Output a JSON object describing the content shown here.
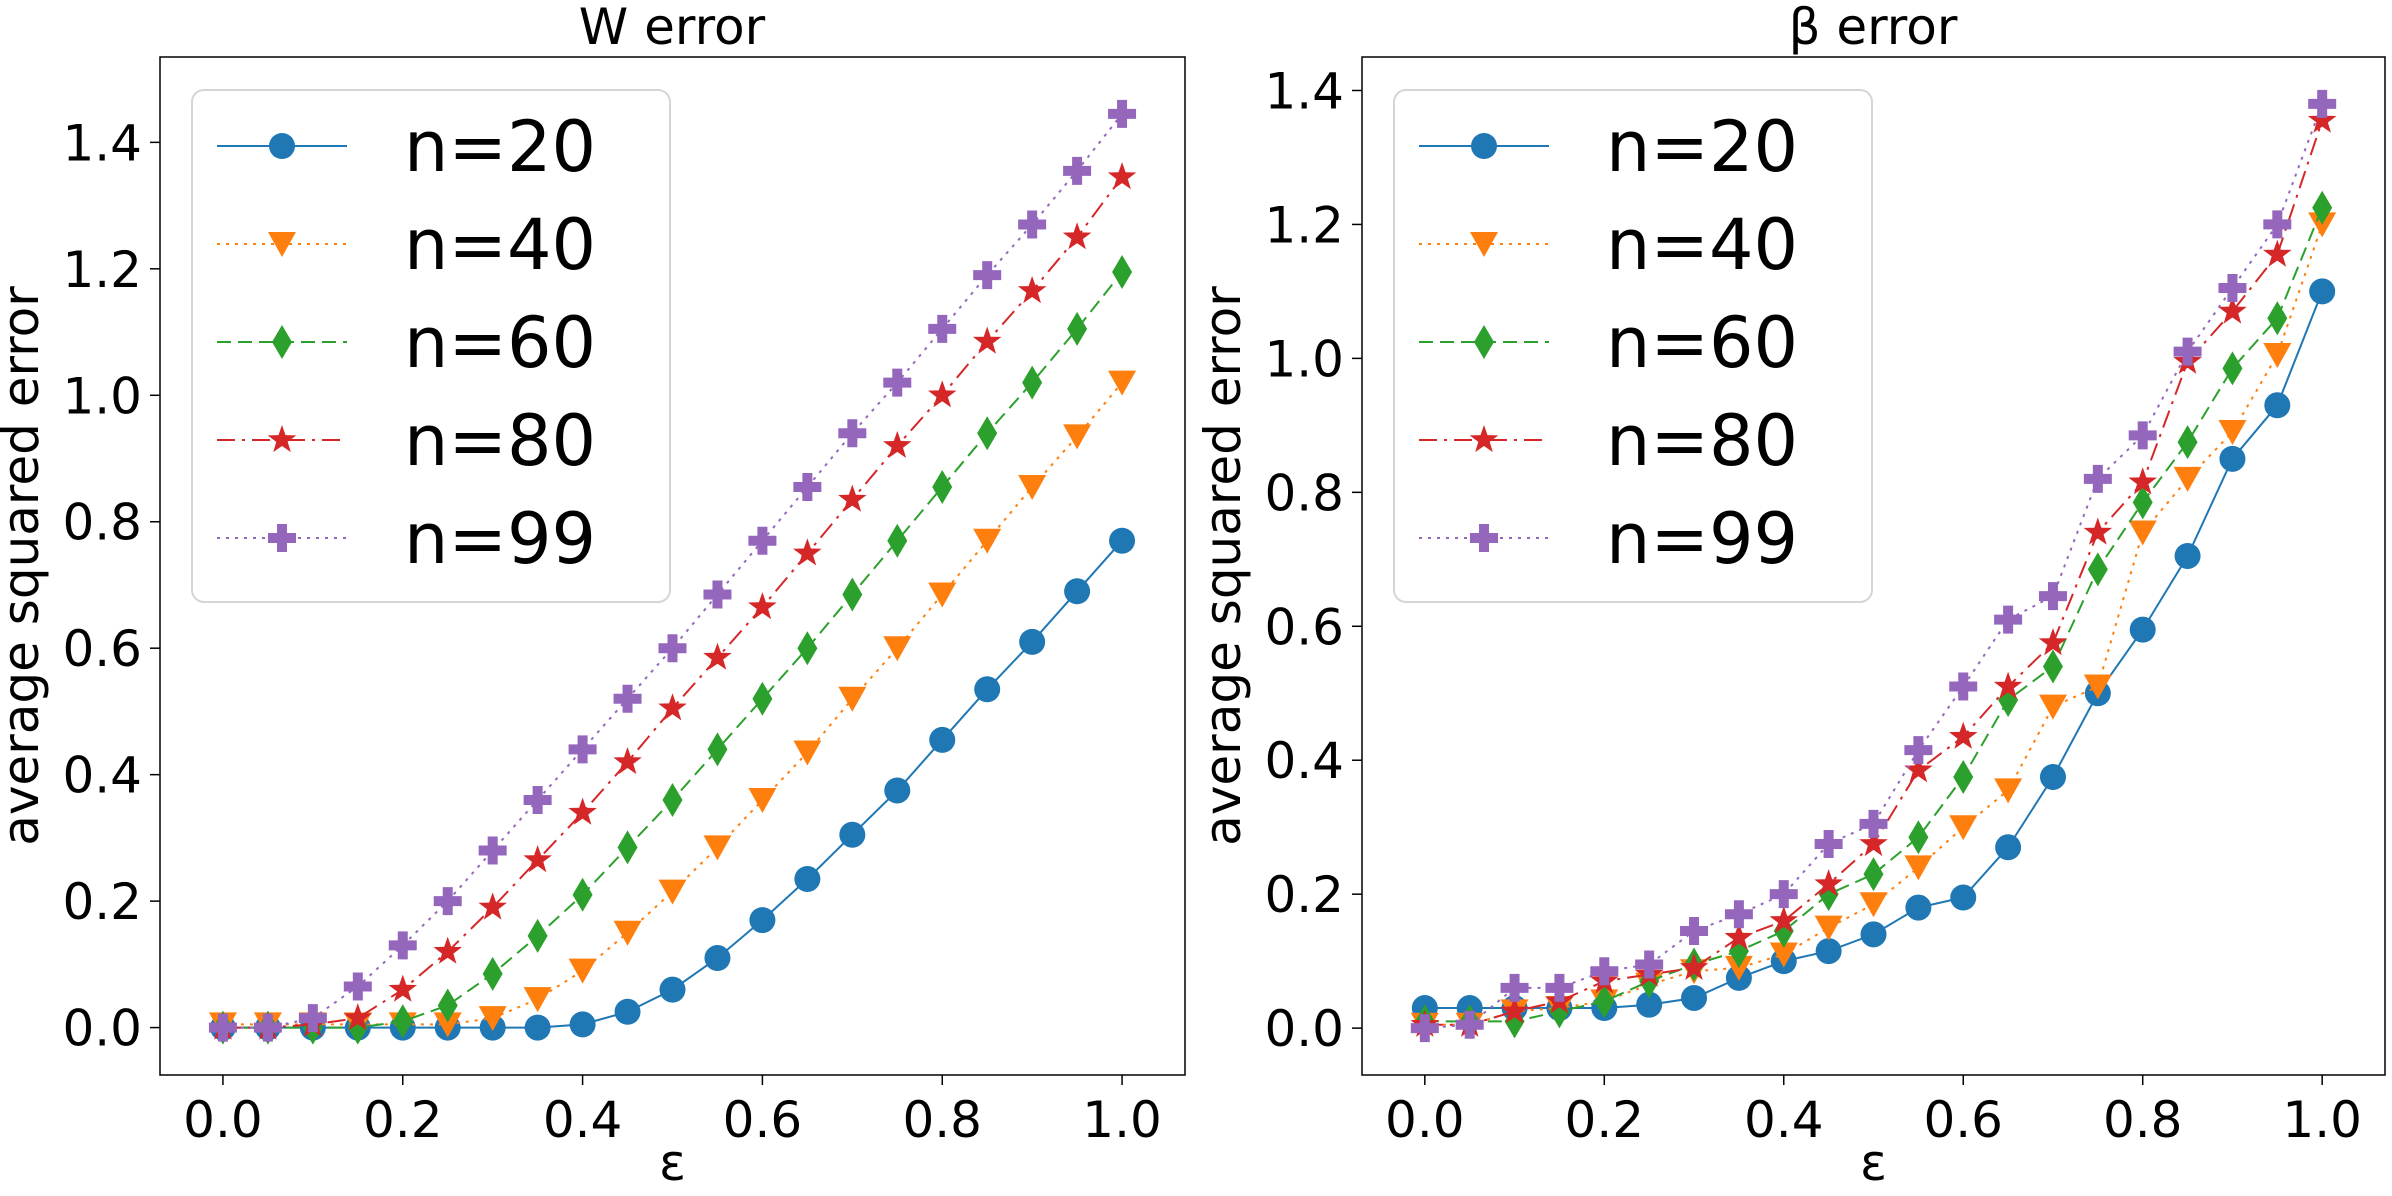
{
  "colors": {
    "n20": "#1f77b4",
    "n40": "#ff7f0e",
    "n60": "#2ca02c",
    "n80": "#d62728",
    "n99": "#9467bd"
  },
  "chart_data": [
    {
      "type": "line",
      "title": "W error",
      "xlabel": "ε",
      "ylabel": "average squared error",
      "xlim": [
        -0.07,
        1.07
      ],
      "ylim": [
        -0.075,
        1.535
      ],
      "xticks": [
        "0.0",
        "0.2",
        "0.4",
        "0.6",
        "0.8",
        "1.0"
      ],
      "yticks": [
        "0.0",
        "0.2",
        "0.4",
        "0.6",
        "0.8",
        "1.0",
        "1.2",
        "1.4"
      ],
      "grid": false,
      "legend": "top-left",
      "x": [
        0.0,
        0.05,
        0.1,
        0.15,
        0.2,
        0.25,
        0.3,
        0.35,
        0.4,
        0.45,
        0.5,
        0.55,
        0.6,
        0.65,
        0.7,
        0.75,
        0.8,
        0.85,
        0.9,
        0.95,
        1.0
      ],
      "series": [
        {
          "name": "n=20",
          "marker": "circle",
          "linestyle": "solid",
          "color": "#1f77b4",
          "values": [
            0.0,
            0.0,
            0.0,
            0.0,
            0.0,
            0.0,
            0.0,
            0.0,
            0.005,
            0.025,
            0.06,
            0.11,
            0.17,
            0.235,
            0.305,
            0.375,
            0.455,
            0.535,
            0.61,
            0.69,
            0.77
          ]
        },
        {
          "name": "n=40",
          "marker": "triangle-down",
          "linestyle": "dotted",
          "color": "#ff7f0e",
          "values": [
            0.005,
            0.005,
            0.005,
            0.005,
            0.005,
            0.005,
            0.015,
            0.045,
            0.09,
            0.15,
            0.215,
            0.285,
            0.36,
            0.435,
            0.52,
            0.6,
            0.685,
            0.77,
            0.855,
            0.935,
            1.02
          ]
        },
        {
          "name": "n=60",
          "marker": "thin-diamond",
          "linestyle": "dashed",
          "color": "#2ca02c",
          "values": [
            0.0,
            0.0,
            0.0,
            0.0,
            0.01,
            0.035,
            0.085,
            0.145,
            0.21,
            0.285,
            0.36,
            0.44,
            0.52,
            0.6,
            0.685,
            0.77,
            0.855,
            0.94,
            1.02,
            1.105,
            1.195
          ]
        },
        {
          "name": "n=80",
          "marker": "star",
          "linestyle": "dashdot",
          "color": "#d62728",
          "values": [
            0.0,
            0.0,
            0.005,
            0.015,
            0.06,
            0.12,
            0.19,
            0.265,
            0.34,
            0.42,
            0.505,
            0.585,
            0.665,
            0.75,
            0.835,
            0.92,
            1.0,
            1.085,
            1.165,
            1.25,
            1.345
          ]
        },
        {
          "name": "n=99",
          "marker": "plus",
          "linestyle": "dotted",
          "color": "#9467bd",
          "values": [
            0.0,
            0.0,
            0.015,
            0.065,
            0.13,
            0.2,
            0.28,
            0.36,
            0.44,
            0.52,
            0.6,
            0.685,
            0.77,
            0.855,
            0.94,
            1.02,
            1.105,
            1.19,
            1.27,
            1.355,
            1.445
          ]
        }
      ]
    },
    {
      "type": "line",
      "title": "β error",
      "xlabel": "ε",
      "ylabel": "average squared error",
      "xlim": [
        -0.07,
        1.07
      ],
      "ylim": [
        -0.07,
        1.45
      ],
      "xticks": [
        "0.0",
        "0.2",
        "0.4",
        "0.6",
        "0.8",
        "1.0"
      ],
      "yticks": [
        "0.0",
        "0.2",
        "0.4",
        "0.6",
        "0.8",
        "1.0",
        "1.2",
        "1.4"
      ],
      "grid": false,
      "legend": "top-left",
      "x": [
        0.0,
        0.05,
        0.1,
        0.15,
        0.2,
        0.25,
        0.3,
        0.35,
        0.4,
        0.45,
        0.5,
        0.55,
        0.6,
        0.65,
        0.7,
        0.75,
        0.8,
        0.85,
        0.9,
        0.95,
        1.0
      ],
      "series": [
        {
          "name": "n=20",
          "marker": "circle",
          "linestyle": "solid",
          "color": "#1f77b4",
          "values": [
            0.03,
            0.03,
            0.03,
            0.03,
            0.03,
            0.035,
            0.045,
            0.075,
            0.1,
            0.115,
            0.14,
            0.18,
            0.195,
            0.27,
            0.375,
            0.5,
            0.595,
            0.705,
            0.85,
            0.93,
            1.1
          ]
        },
        {
          "name": "n=40",
          "marker": "triangle-down",
          "linestyle": "dotted",
          "color": "#ff7f0e",
          "values": [
            0.005,
            0.005,
            0.025,
            0.03,
            0.04,
            0.065,
            0.085,
            0.09,
            0.11,
            0.15,
            0.185,
            0.24,
            0.3,
            0.355,
            0.48,
            0.51,
            0.74,
            0.82,
            0.89,
            1.005,
            1.2
          ]
        },
        {
          "name": "n=60",
          "marker": "thin-diamond",
          "linestyle": "dashed",
          "color": "#2ca02c",
          "values": [
            0.01,
            0.01,
            0.01,
            0.025,
            0.04,
            0.07,
            0.095,
            0.115,
            0.145,
            0.2,
            0.23,
            0.285,
            0.375,
            0.49,
            0.54,
            0.685,
            0.785,
            0.875,
            0.985,
            1.06,
            1.225
          ]
        },
        {
          "name": "n=80",
          "marker": "star",
          "linestyle": "dashdot",
          "color": "#d62728",
          "values": [
            0.005,
            0.005,
            0.025,
            0.04,
            0.07,
            0.08,
            0.09,
            0.135,
            0.16,
            0.215,
            0.275,
            0.385,
            0.435,
            0.51,
            0.575,
            0.74,
            0.815,
            0.995,
            1.07,
            1.155,
            1.355
          ]
        },
        {
          "name": "n=99",
          "marker": "plus",
          "linestyle": "dotted",
          "color": "#9467bd",
          "values": [
            0.0,
            0.005,
            0.06,
            0.06,
            0.085,
            0.095,
            0.145,
            0.17,
            0.2,
            0.275,
            0.305,
            0.415,
            0.51,
            0.61,
            0.645,
            0.82,
            0.885,
            1.01,
            1.105,
            1.2,
            1.38
          ]
        }
      ]
    }
  ]
}
